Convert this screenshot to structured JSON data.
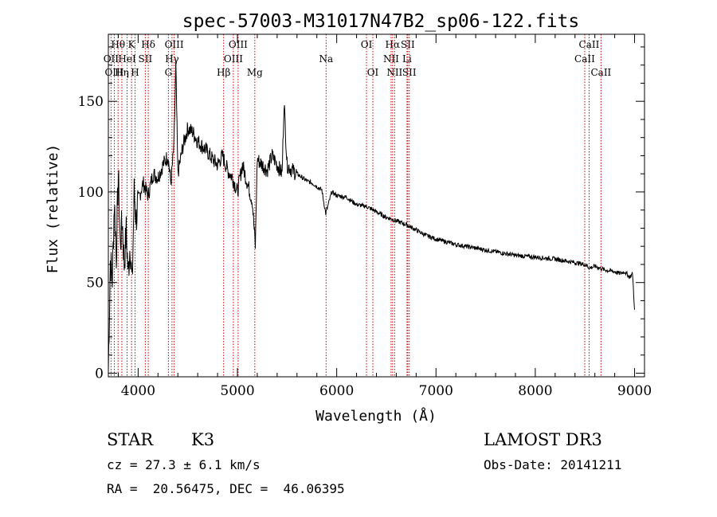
{
  "chart_data": {
    "type": "line",
    "title": "spec-57003-M31017N47B2_sp06-122.fits",
    "xlabel": "Wavelength (Å)",
    "ylabel": "Flux (relative)",
    "xlim": [
      3700,
      9100
    ],
    "ylim": [
      -2,
      187
    ],
    "x_ticks": [
      4000,
      5000,
      6000,
      7000,
      8000,
      9000
    ],
    "y_ticks": [
      0,
      50,
      100,
      150
    ],
    "grid": false,
    "series": [
      {
        "name": "flux",
        "x": [
          3700,
          3720,
          3740,
          3760,
          3780,
          3800,
          3820,
          3840,
          3860,
          3880,
          3900,
          3920,
          3940,
          3960,
          3980,
          4000,
          4050,
          4100,
          4150,
          4200,
          4250,
          4300,
          4330,
          4360,
          4380,
          4400,
          4450,
          4500,
          4550,
          4600,
          4650,
          4700,
          4750,
          4800,
          4850,
          4900,
          4950,
          5000,
          5050,
          5100,
          5150,
          5180,
          5200,
          5250,
          5300,
          5350,
          5400,
          5450,
          5470,
          5500,
          5550,
          5600,
          5650,
          5700,
          5750,
          5800,
          5850,
          5890,
          5950,
          6000,
          6100,
          6200,
          6300,
          6400,
          6500,
          6560,
          6600,
          6700,
          6800,
          6900,
          7000,
          7200,
          7400,
          7600,
          7800,
          8000,
          8200,
          8400,
          8500,
          8550,
          8600,
          8700,
          8800,
          8850,
          8900,
          8950,
          8980,
          9000
        ],
        "y": [
          2,
          62,
          52,
          95,
          65,
          110,
          70,
          85,
          60,
          78,
          55,
          72,
          48,
          100,
          85,
          95,
          105,
          98,
          110,
          108,
          115,
          120,
          105,
          125,
          170,
          110,
          125,
          135,
          133,
          128,
          125,
          122,
          118,
          115,
          120,
          112,
          108,
          100,
          115,
          105,
          95,
          70,
          118,
          115,
          112,
          120,
          115,
          110,
          150,
          115,
          112,
          110,
          108,
          106,
          105,
          103,
          101,
          88,
          100,
          98,
          97,
          93,
          92,
          89,
          86,
          85,
          84,
          82,
          79,
          76,
          74,
          71,
          69,
          67,
          65,
          64,
          63,
          61,
          60,
          58,
          59,
          57,
          56,
          55,
          56,
          53,
          55,
          35
        ]
      }
    ],
    "lines": [
      {
        "name": "Hθ",
        "x": 3798,
        "row": 1
      },
      {
        "name": "OII",
        "x": 3727,
        "row": 2
      },
      {
        "name": "OIII",
        "x": 3760,
        "row": 3
      },
      {
        "name": "HeI",
        "x": 3889,
        "row": 2
      },
      {
        "name": "Hη",
        "x": 3836,
        "row": 3
      },
      {
        "name": "K",
        "x": 3934,
        "row": 1
      },
      {
        "name": "H",
        "x": 3969,
        "row": 3
      },
      {
        "name": "SII",
        "x": 4072,
        "row": 2
      },
      {
        "name": "Hδ",
        "x": 4102,
        "row": 1
      },
      {
        "name": "OIII",
        "x": 4363,
        "row": 1
      },
      {
        "name": "Hγ",
        "x": 4341,
        "row": 2
      },
      {
        "name": "G",
        "x": 4305,
        "row": 3
      },
      {
        "name": "Hβ",
        "x": 4861,
        "row": 3
      },
      {
        "name": "OIII",
        "x": 5007,
        "row": 1
      },
      {
        "name": "OIII",
        "x": 4959,
        "row": 2
      },
      {
        "name": "Mg",
        "x": 5175,
        "row": 3
      },
      {
        "name": "Na",
        "x": 5893,
        "row": 2
      },
      {
        "name": "OI",
        "x": 6300,
        "row": 1
      },
      {
        "name": "OI",
        "x": 6364,
        "row": 3
      },
      {
        "name": "Hα",
        "x": 6563,
        "row": 1
      },
      {
        "name": "SII",
        "x": 6716,
        "row": 1
      },
      {
        "name": "NII",
        "x": 6548,
        "row": 2
      },
      {
        "name": "Li",
        "x": 6708,
        "row": 2
      },
      {
        "name": "NII",
        "x": 6583,
        "row": 3
      },
      {
        "name": "SII",
        "x": 6731,
        "row": 3
      },
      {
        "name": "CaII",
        "x": 8542,
        "row": 1
      },
      {
        "name": "CaII",
        "x": 8498,
        "row": 2
      },
      {
        "name": "CaII",
        "x": 8662,
        "row": 3
      }
    ]
  },
  "footer": {
    "class": "STAR",
    "subclass": "K3",
    "survey": "LAMOST DR3",
    "cz": "cz = 27.3 ± 6.1 km/s",
    "obs_date": "Obs-Date: 20141211",
    "coords": "RA =  20.56475, DEC =  46.06395"
  },
  "colors": {
    "spectrum": "#000000",
    "line_marker": "#cc0000",
    "axes": "#000000"
  }
}
